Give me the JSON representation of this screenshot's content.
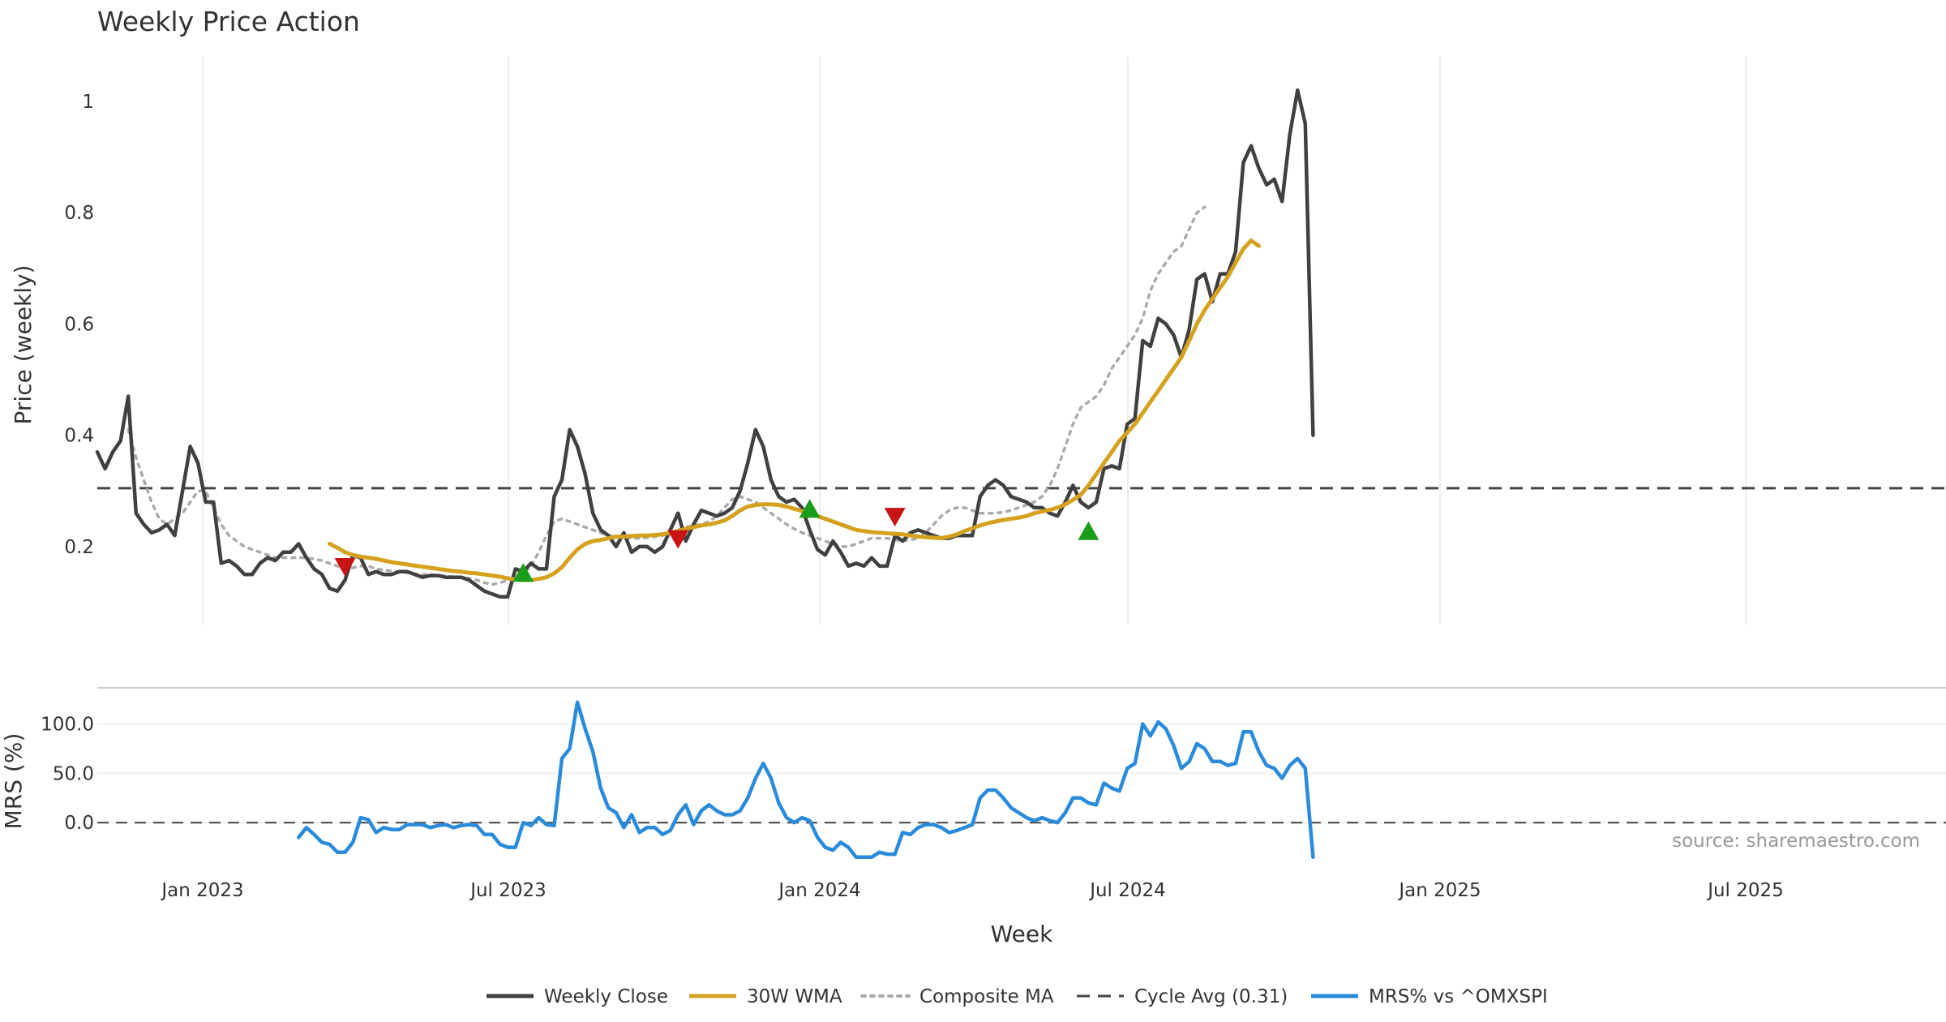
{
  "chart_data": {
    "type": "line",
    "title": "Weekly Price Action",
    "xlabel": "Week",
    "x_ticks": [
      "Jan 2023",
      "Jul 2023",
      "Jan 2024",
      "Jul 2024",
      "Jan 2025",
      "Jul 2025"
    ],
    "source": "source: sharemaestro.com",
    "price_panel": {
      "ylabel": "Price (weekly)",
      "ylim": [
        0.06,
        1.08
      ],
      "y_ticks": [
        "0.2",
        "0.4",
        "0.6",
        "0.8",
        "1"
      ],
      "y_tick_values": [
        0.2,
        0.4,
        0.6,
        0.8,
        1.0
      ],
      "cycle_avg": 0.305,
      "series": [
        {
          "name": "Weekly Close",
          "color": "#404040",
          "style": "solid",
          "start_week": 0,
          "values": [
            0.37,
            0.34,
            0.37,
            0.39,
            0.47,
            0.26,
            0.24,
            0.225,
            0.23,
            0.24,
            0.22,
            0.3,
            0.38,
            0.35,
            0.28,
            0.28,
            0.17,
            0.175,
            0.165,
            0.15,
            0.15,
            0.17,
            0.18,
            0.175,
            0.19,
            0.19,
            0.205,
            0.18,
            0.16,
            0.15,
            0.125,
            0.12,
            0.14,
            0.185,
            0.18,
            0.15,
            0.155,
            0.15,
            0.15,
            0.155,
            0.155,
            0.15,
            0.145,
            0.148,
            0.148,
            0.145,
            0.145,
            0.145,
            0.14,
            0.13,
            0.12,
            0.115,
            0.11,
            0.11,
            0.16,
            0.155,
            0.17,
            0.16,
            0.16,
            0.29,
            0.32,
            0.41,
            0.38,
            0.33,
            0.26,
            0.23,
            0.22,
            0.2,
            0.225,
            0.19,
            0.2,
            0.2,
            0.19,
            0.2,
            0.23,
            0.26,
            0.21,
            0.24,
            0.265,
            0.26,
            0.255,
            0.26,
            0.27,
            0.3,
            0.35,
            0.41,
            0.38,
            0.32,
            0.29,
            0.28,
            0.285,
            0.27,
            0.23,
            0.195,
            0.185,
            0.21,
            0.19,
            0.165,
            0.17,
            0.165,
            0.18,
            0.165,
            0.165,
            0.22,
            0.21,
            0.225,
            0.23,
            0.225,
            0.22,
            0.215,
            0.215,
            0.22,
            0.22,
            0.22,
            0.29,
            0.31,
            0.32,
            0.31,
            0.29,
            0.285,
            0.28,
            0.27,
            0.27,
            0.26,
            0.255,
            0.28,
            0.31,
            0.28,
            0.27,
            0.28,
            0.34,
            0.345,
            0.34,
            0.42,
            0.43,
            0.57,
            0.56,
            0.61,
            0.6,
            0.58,
            0.54,
            0.59,
            0.68,
            0.69,
            0.64,
            0.69,
            0.69,
            0.73,
            0.89,
            0.92,
            0.88,
            0.85,
            0.86,
            0.82,
            0.94,
            1.02,
            0.96,
            0.4
          ]
        },
        {
          "name": "30W WMA",
          "color": "#d4a21e",
          "style": "solid",
          "start_week": 30,
          "values": [
            0.205,
            0.198,
            0.19,
            0.185,
            0.182,
            0.18,
            0.178,
            0.175,
            0.172,
            0.17,
            0.168,
            0.166,
            0.164,
            0.162,
            0.16,
            0.158,
            0.156,
            0.155,
            0.153,
            0.152,
            0.15,
            0.148,
            0.146,
            0.143,
            0.141,
            0.14,
            0.14,
            0.142,
            0.145,
            0.152,
            0.163,
            0.18,
            0.195,
            0.205,
            0.21,
            0.212,
            0.215,
            0.218,
            0.218,
            0.219,
            0.22,
            0.22,
            0.221,
            0.222,
            0.225,
            0.228,
            0.232,
            0.235,
            0.238,
            0.24,
            0.243,
            0.247,
            0.255,
            0.265,
            0.272,
            0.275,
            0.276,
            0.276,
            0.275,
            0.272,
            0.268,
            0.264,
            0.26,
            0.255,
            0.25,
            0.245,
            0.24,
            0.235,
            0.23,
            0.228,
            0.226,
            0.225,
            0.224,
            0.223,
            0.222,
            0.22,
            0.218,
            0.217,
            0.216,
            0.215,
            0.218,
            0.222,
            0.228,
            0.233,
            0.238,
            0.242,
            0.245,
            0.248,
            0.25,
            0.252,
            0.255,
            0.26,
            0.263,
            0.266,
            0.27,
            0.276,
            0.284,
            0.293,
            0.31,
            0.33,
            0.35,
            0.37,
            0.39,
            0.405,
            0.42,
            0.44,
            0.46,
            0.48,
            0.5,
            0.52,
            0.54,
            0.57,
            0.6,
            0.625,
            0.645,
            0.665,
            0.685,
            0.71,
            0.735,
            0.75,
            0.74
          ]
        },
        {
          "name": "Composite MA",
          "color": "#aaaaaa",
          "style": "dotted",
          "start_week": 4,
          "values": [
            0.41,
            0.36,
            0.32,
            0.28,
            0.25,
            0.24,
            0.25,
            0.26,
            0.28,
            0.3,
            0.3,
            0.27,
            0.24,
            0.22,
            0.21,
            0.2,
            0.195,
            0.19,
            0.185,
            0.18,
            0.18,
            0.18,
            0.18,
            0.18,
            0.178,
            0.175,
            0.17,
            0.165,
            0.16,
            0.162,
            0.165,
            0.165,
            0.16,
            0.158,
            0.156,
            0.155,
            0.153,
            0.151,
            0.15,
            0.15,
            0.148,
            0.147,
            0.146,
            0.145,
            0.143,
            0.14,
            0.135,
            0.132,
            0.135,
            0.14,
            0.145,
            0.15,
            0.165,
            0.19,
            0.22,
            0.245,
            0.25,
            0.245,
            0.24,
            0.235,
            0.23,
            0.225,
            0.22,
            0.218,
            0.216,
            0.215,
            0.215,
            0.216,
            0.218,
            0.22,
            0.225,
            0.23,
            0.235,
            0.238,
            0.24,
            0.245,
            0.255,
            0.27,
            0.285,
            0.29,
            0.285,
            0.28,
            0.27,
            0.26,
            0.25,
            0.24,
            0.232,
            0.225,
            0.22,
            0.215,
            0.21,
            0.205,
            0.2,
            0.2,
            0.205,
            0.21,
            0.215,
            0.215,
            0.215,
            0.212,
            0.21,
            0.212,
            0.215,
            0.225,
            0.24,
            0.255,
            0.265,
            0.27,
            0.27,
            0.265,
            0.26,
            0.26,
            0.26,
            0.262,
            0.265,
            0.27,
            0.275,
            0.28,
            0.29,
            0.31,
            0.34,
            0.38,
            0.42,
            0.45,
            0.46,
            0.47,
            0.49,
            0.52,
            0.54,
            0.56,
            0.58,
            0.61,
            0.66,
            0.69,
            0.71,
            0.73,
            0.74,
            0.77,
            0.8,
            0.81
          ]
        }
      ],
      "buy_signals": [
        {
          "week": 55,
          "value": 0.15
        },
        {
          "week": 92,
          "value": 0.265
        },
        {
          "week": 128,
          "value": 0.225
        }
      ],
      "sell_signals": [
        {
          "week": 32,
          "value": 0.165
        },
        {
          "week": 75,
          "value": 0.215
        },
        {
          "week": 103,
          "value": 0.255
        }
      ]
    },
    "mrs_panel": {
      "ylabel": "MRS (%)",
      "ylim": [
        -50,
        135
      ],
      "y_ticks": [
        "100.0",
        "50.0",
        "0.0"
      ],
      "y_tick_values": [
        100,
        50,
        0
      ],
      "series": [
        {
          "name": "MRS% vs ^OMXSPI",
          "color": "#2a8bdb",
          "style": "solid",
          "start_week": 26,
          "values": [
            -15,
            -5,
            -12,
            -20,
            -22,
            -30,
            -30,
            -20,
            5,
            3,
            -10,
            -5,
            -7,
            -7,
            -2,
            -2,
            -2,
            -5,
            -3,
            -2,
            -5,
            -3,
            -2,
            -3,
            -12,
            -12,
            -22,
            -25,
            -25,
            0,
            -3,
            5,
            -2,
            -3,
            65,
            75,
            122,
            95,
            72,
            35,
            15,
            10,
            -5,
            8,
            -10,
            -5,
            -5,
            -12,
            -8,
            8,
            18,
            -2,
            12,
            18,
            12,
            8,
            8,
            12,
            25,
            45,
            60,
            45,
            20,
            5,
            0,
            5,
            2,
            -15,
            -25,
            -28,
            -20,
            -25,
            -35,
            -35,
            -35,
            -30,
            -32,
            -32,
            -10,
            -12,
            -5,
            -2,
            -2,
            -5,
            -10,
            -8,
            -5,
            -2,
            25,
            33,
            33,
            25,
            15,
            10,
            5,
            2,
            5,
            2,
            0,
            10,
            25,
            25,
            20,
            18,
            40,
            35,
            32,
            55,
            60,
            100,
            88,
            102,
            95,
            78,
            55,
            62,
            80,
            75,
            62,
            62,
            58,
            60,
            92,
            92,
            72,
            58,
            55,
            45,
            58,
            65,
            55,
            -35
          ]
        }
      ]
    },
    "legend": [
      {
        "label": "Weekly Close",
        "color": "#404040",
        "style": "solid"
      },
      {
        "label": "30W WMA",
        "color": "#d4a21e",
        "style": "solid"
      },
      {
        "label": "Composite MA",
        "color": "#aaaaaa",
        "style": "dotted"
      },
      {
        "label": "Cycle Avg (0.31)",
        "color": "#444444",
        "style": "dashed"
      },
      {
        "label": "MRS% vs ^OMXSPI",
        "color": "#2a8bdb",
        "style": "solid"
      }
    ],
    "signal_colors": {
      "buy": "#1a9e1a",
      "sell": "#c81414"
    }
  }
}
